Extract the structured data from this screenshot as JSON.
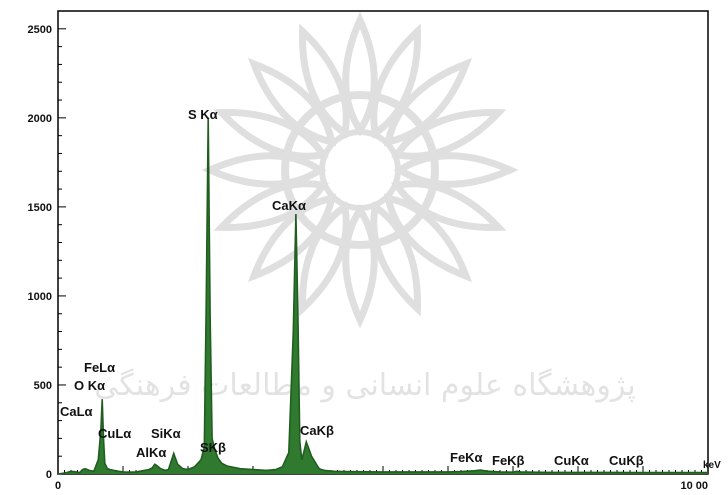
{
  "chart_data": {
    "type": "line",
    "xlim": [
      0,
      10
    ],
    "ylim": [
      0,
      2600
    ],
    "x_unit": "keV",
    "y_ticks": [
      0,
      500,
      1000,
      1500,
      2000,
      2500
    ],
    "x_tick_labels": [
      {
        "x": 0,
        "label": "0"
      },
      {
        "x": 10,
        "label": "10 00"
      }
    ],
    "color": "#2f7a2f",
    "series": [
      {
        "x": [
          0.0,
          0.1,
          0.2,
          0.28,
          0.3,
          0.34,
          0.38,
          0.42,
          0.48,
          0.55,
          0.62,
          0.66,
          0.68,
          0.7,
          0.72,
          0.76,
          0.8,
          0.86,
          0.93,
          1.0,
          1.1,
          1.2,
          1.3,
          1.4,
          1.45,
          1.49,
          1.53,
          1.58,
          1.65,
          1.7,
          1.74,
          1.78,
          1.84,
          1.92,
          2.0,
          2.1,
          2.2,
          2.25,
          2.28,
          2.31,
          2.34,
          2.37,
          2.41,
          2.46,
          2.52,
          2.6,
          2.8,
          3.0,
          3.2,
          3.35,
          3.45,
          3.55,
          3.62,
          3.66,
          3.69,
          3.72,
          3.75,
          3.78,
          3.82,
          3.9,
          4.0,
          4.02,
          4.05,
          4.1,
          4.16,
          4.25,
          4.4,
          4.6,
          5.0,
          5.5,
          6.0,
          6.2,
          6.4,
          6.5,
          6.6,
          6.8,
          7.0,
          7.06,
          7.12,
          7.3,
          7.6,
          8.0,
          8.5,
          9.0,
          9.5,
          10.0
        ],
        "y": [
          0,
          5,
          15,
          12,
          8,
          10,
          25,
          30,
          20,
          15,
          80,
          250,
          420,
          200,
          60,
          30,
          25,
          20,
          15,
          12,
          10,
          12,
          18,
          25,
          35,
          55,
          45,
          30,
          20,
          25,
          70,
          115,
          55,
          30,
          25,
          40,
          80,
          150,
          950,
          2000,
          900,
          200,
          140,
          90,
          60,
          45,
          30,
          25,
          20,
          25,
          40,
          120,
          800,
          1460,
          900,
          180,
          80,
          120,
          180,
          100,
          40,
          30,
          25,
          20,
          18,
          15,
          14,
          13,
          12,
          12,
          12,
          14,
          18,
          22,
          16,
          12,
          10,
          15,
          12,
          10,
          9,
          9,
          9,
          8,
          8,
          8
        ]
      }
    ],
    "annotations": [
      "FeLα",
      "O Kα",
      "CaLα",
      "CuLα",
      "AlKα",
      "SiKα",
      "S Kα",
      "SKβ",
      "CaKα",
      "CaKβ",
      "FeKα",
      "FeKβ",
      "CuKα",
      "CuKβ"
    ],
    "watermark_text": "پژوهشگاه علوم انسانی و مطالعات فرهنگی"
  }
}
